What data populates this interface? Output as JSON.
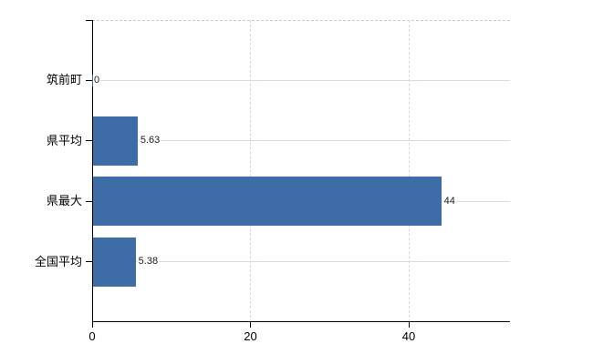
{
  "chart_data": {
    "type": "bar",
    "orientation": "horizontal",
    "title": "",
    "categories": [
      "筑前町",
      "県平均",
      "県最大",
      "全国平均"
    ],
    "values": [
      0,
      5.63,
      44,
      5.38
    ],
    "value_labels": [
      "0",
      "5.63",
      "44",
      "5.38"
    ],
    "x_ticks": [
      0,
      20,
      40
    ],
    "x_tick_labels": [
      "0",
      "20",
      "40"
    ],
    "xlim": [
      0,
      52.8
    ],
    "grid": "on",
    "legend": "none",
    "bar_color": "#3E6CA6",
    "h_gridline_color": "#d8ddd5",
    "v_gridline_color": "#d4dad2",
    "axis_color": "#000000",
    "category_label_color": "#000000",
    "data_label_color": "#1a1a1a"
  }
}
